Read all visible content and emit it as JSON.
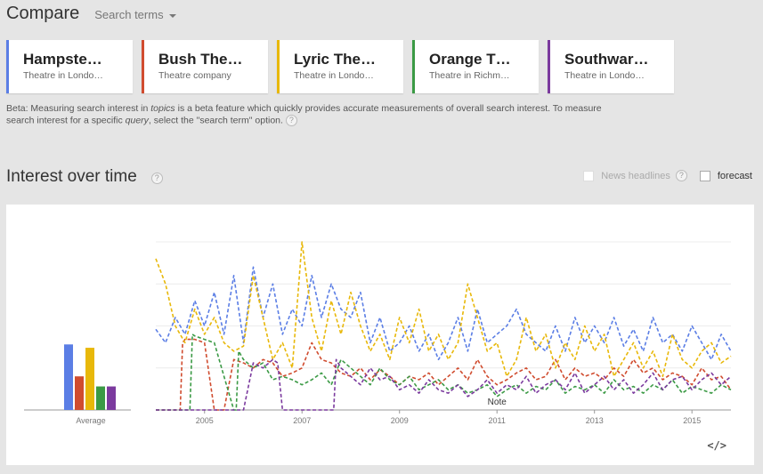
{
  "header": {
    "title": "Compare",
    "search_terms_label": "Search terms"
  },
  "terms": [
    {
      "name": "Hampste…",
      "sub": "Theatre in Londo…",
      "color": "#5b7ee5"
    },
    {
      "name": "Bush The…",
      "sub": "Theatre company",
      "color": "#d04c2f"
    },
    {
      "name": "Lyric The…",
      "sub": "Theatre in Londo…",
      "color": "#e8b80a"
    },
    {
      "name": "Orange T…",
      "sub": "Theatre in Richm…",
      "color": "#3b9a45"
    },
    {
      "name": "Southwar…",
      "sub": "Theatre in Londo…",
      "color": "#7b3a9e"
    }
  ],
  "beta_note": {
    "part1": "Beta: Measuring search interest in ",
    "topics": "topics",
    "part2": " is a beta feature which quickly provides accurate measurements of overall search interest. To measure search interest for a specific ",
    "query": "query",
    "part3": ", select the \"search term\" option."
  },
  "section": {
    "title": "Interest over time",
    "news_headlines_label": "News headlines",
    "forecast_label": "forecast",
    "help_glyph": "?",
    "embed_glyph": "</>"
  },
  "chart_data": {
    "type": "line",
    "title": "",
    "xlabel": "",
    "ylabel": "",
    "ylim": [
      0,
      100
    ],
    "x_start": 2004.0,
    "x_end": 2015.8,
    "x_ticks": [
      "2005",
      "2007",
      "2009",
      "2011",
      "2013",
      "2015"
    ],
    "x_tick_values": [
      2005,
      2007,
      2009,
      2011,
      2013,
      2015
    ],
    "average_label": "Average",
    "averages": [
      39,
      20,
      37,
      14,
      14
    ],
    "note_label": "Note",
    "note_x": 2011.0,
    "grid": true,
    "series": [
      {
        "name": "Hampste…",
        "color": "#5b7ee5",
        "x": [
          2004.0,
          2004.2,
          2004.4,
          2004.6,
          2004.8,
          2005.0,
          2005.2,
          2005.4,
          2005.6,
          2005.8,
          2006.0,
          2006.2,
          2006.4,
          2006.6,
          2006.8,
          2007.0,
          2007.2,
          2007.4,
          2007.6,
          2007.8,
          2008.0,
          2008.2,
          2008.4,
          2008.6,
          2008.8,
          2009.0,
          2009.2,
          2009.4,
          2009.6,
          2009.8,
          2010.0,
          2010.2,
          2010.4,
          2010.6,
          2010.8,
          2011.0,
          2011.2,
          2011.4,
          2011.6,
          2011.8,
          2012.0,
          2012.2,
          2012.4,
          2012.6,
          2012.8,
          2013.0,
          2013.2,
          2013.4,
          2013.6,
          2013.8,
          2014.0,
          2014.2,
          2014.4,
          2014.6,
          2014.8,
          2015.0,
          2015.2,
          2015.4,
          2015.6,
          2015.8
        ],
        "y": [
          48,
          40,
          55,
          45,
          65,
          50,
          70,
          45,
          80,
          40,
          85,
          55,
          75,
          45,
          60,
          50,
          80,
          55,
          75,
          60,
          55,
          70,
          40,
          55,
          35,
          40,
          50,
          35,
          45,
          30,
          40,
          55,
          35,
          60,
          40,
          45,
          50,
          60,
          45,
          40,
          35,
          50,
          35,
          55,
          40,
          50,
          40,
          55,
          38,
          48,
          35,
          55,
          40,
          45,
          35,
          50,
          40,
          30,
          45,
          35
        ]
      },
      {
        "name": "Bush The…",
        "color": "#d04c2f",
        "x": [
          2004.0,
          2004.2,
          2004.4,
          2004.5,
          2004.55,
          2004.6,
          2004.8,
          2005.0,
          2005.2,
          2005.4,
          2005.6,
          2005.8,
          2006.0,
          2006.2,
          2006.4,
          2006.6,
          2006.8,
          2007.0,
          2007.2,
          2007.4,
          2007.6,
          2007.8,
          2008.0,
          2008.2,
          2008.4,
          2008.6,
          2008.8,
          2009.0,
          2009.2,
          2009.4,
          2009.6,
          2009.8,
          2010.0,
          2010.2,
          2010.4,
          2010.6,
          2010.8,
          2011.0,
          2011.2,
          2011.4,
          2011.6,
          2011.8,
          2012.0,
          2012.2,
          2012.4,
          2012.6,
          2012.8,
          2013.0,
          2013.2,
          2013.4,
          2013.6,
          2013.8,
          2014.0,
          2014.2,
          2014.4,
          2014.6,
          2014.8,
          2015.0,
          2015.2,
          2015.4,
          2015.6,
          2015.8
        ],
        "y": [
          0,
          0,
          0,
          0,
          40,
          42,
          42,
          40,
          0,
          0,
          30,
          28,
          25,
          30,
          28,
          20,
          22,
          25,
          40,
          30,
          28,
          22,
          20,
          25,
          18,
          24,
          20,
          15,
          20,
          18,
          22,
          15,
          20,
          25,
          18,
          30,
          20,
          15,
          18,
          22,
          25,
          18,
          20,
          30,
          18,
          25,
          20,
          22,
          18,
          25,
          20,
          30,
          22,
          25,
          18,
          22,
          20,
          15,
          25,
          18,
          20,
          12
        ]
      },
      {
        "name": "Lyric The…",
        "color": "#e8b80a",
        "x": [
          2004.0,
          2004.2,
          2004.4,
          2004.6,
          2004.8,
          2005.0,
          2005.2,
          2005.4,
          2005.6,
          2005.8,
          2006.0,
          2006.2,
          2006.4,
          2006.6,
          2006.8,
          2007.0,
          2007.2,
          2007.4,
          2007.6,
          2007.8,
          2008.0,
          2008.2,
          2008.4,
          2008.6,
          2008.8,
          2009.0,
          2009.2,
          2009.4,
          2009.6,
          2009.8,
          2010.0,
          2010.2,
          2010.4,
          2010.6,
          2010.8,
          2011.0,
          2011.2,
          2011.4,
          2011.6,
          2011.8,
          2012.0,
          2012.2,
          2012.4,
          2012.6,
          2012.8,
          2013.0,
          2013.2,
          2013.4,
          2013.6,
          2013.8,
          2014.0,
          2014.2,
          2014.4,
          2014.6,
          2014.8,
          2015.0,
          2015.2,
          2015.4,
          2015.6,
          2015.8
        ],
        "y": [
          90,
          75,
          50,
          40,
          60,
          45,
          55,
          40,
          35,
          38,
          80,
          55,
          30,
          40,
          25,
          100,
          55,
          35,
          65,
          45,
          70,
          50,
          35,
          45,
          30,
          55,
          40,
          60,
          35,
          45,
          30,
          40,
          75,
          55,
          35,
          40,
          20,
          30,
          55,
          35,
          45,
          25,
          40,
          30,
          50,
          35,
          45,
          20,
          30,
          40,
          25,
          35,
          20,
          45,
          30,
          25,
          35,
          40,
          28,
          32
        ]
      },
      {
        "name": "Orange T…",
        "color": "#3b9a45",
        "x": [
          2004.0,
          2004.2,
          2004.4,
          2004.6,
          2004.7,
          2004.75,
          2004.8,
          2005.0,
          2005.2,
          2005.4,
          2005.6,
          2005.65,
          2005.7,
          2005.8,
          2006.0,
          2006.2,
          2006.4,
          2006.6,
          2006.8,
          2007.0,
          2007.2,
          2007.4,
          2007.6,
          2007.8,
          2008.0,
          2008.2,
          2008.4,
          2008.6,
          2008.8,
          2009.0,
          2009.2,
          2009.4,
          2009.6,
          2009.8,
          2010.0,
          2010.2,
          2010.4,
          2010.6,
          2010.8,
          2011.0,
          2011.2,
          2011.4,
          2011.6,
          2011.8,
          2012.0,
          2012.2,
          2012.4,
          2012.6,
          2012.8,
          2013.0,
          2013.2,
          2013.4,
          2013.6,
          2013.8,
          2014.0,
          2014.2,
          2014.4,
          2014.6,
          2014.8,
          2015.0,
          2015.2,
          2015.4,
          2015.6,
          2015.8
        ],
        "y": [
          0,
          0,
          0,
          0,
          0,
          45,
          44,
          42,
          40,
          20,
          0,
          0,
          35,
          30,
          25,
          28,
          18,
          20,
          18,
          15,
          18,
          22,
          15,
          30,
          25,
          20,
          15,
          25,
          18,
          15,
          20,
          12,
          15,
          18,
          12,
          15,
          10,
          12,
          15,
          8,
          12,
          15,
          10,
          14,
          12,
          18,
          10,
          14,
          12,
          15,
          10,
          18,
          12,
          14,
          10,
          15,
          12,
          18,
          10,
          14,
          12,
          10,
          15,
          12
        ]
      },
      {
        "name": "Southwar…",
        "color": "#7b3a9e",
        "x": [
          2004.0,
          2004.2,
          2004.4,
          2004.6,
          2004.8,
          2005.0,
          2005.2,
          2005.4,
          2005.6,
          2005.8,
          2006.0,
          2006.2,
          2006.4,
          2006.5,
          2006.6,
          2006.8,
          2007.0,
          2007.2,
          2007.4,
          2007.6,
          2007.65,
          2007.7,
          2007.8,
          2008.0,
          2008.2,
          2008.4,
          2008.6,
          2008.8,
          2009.0,
          2009.2,
          2009.4,
          2009.6,
          2009.8,
          2010.0,
          2010.2,
          2010.4,
          2010.6,
          2010.8,
          2011.0,
          2011.2,
          2011.4,
          2011.6,
          2011.8,
          2012.0,
          2012.2,
          2012.4,
          2012.6,
          2012.8,
          2013.0,
          2013.2,
          2013.4,
          2013.6,
          2013.8,
          2014.0,
          2014.2,
          2014.4,
          2014.6,
          2014.8,
          2015.0,
          2015.2,
          2015.4,
          2015.6,
          2015.8
        ],
        "y": [
          0,
          0,
          0,
          0,
          0,
          0,
          0,
          0,
          0,
          0,
          28,
          25,
          30,
          28,
          0,
          0,
          0,
          0,
          0,
          0,
          0,
          30,
          25,
          20,
          15,
          25,
          18,
          20,
          12,
          15,
          10,
          18,
          12,
          10,
          15,
          8,
          12,
          18,
          10,
          15,
          12,
          20,
          10,
          15,
          18,
          12,
          22,
          10,
          15,
          20,
          12,
          18,
          10,
          15,
          22,
          12,
          18,
          20,
          12,
          18,
          22,
          15,
          20
        ]
      }
    ]
  }
}
